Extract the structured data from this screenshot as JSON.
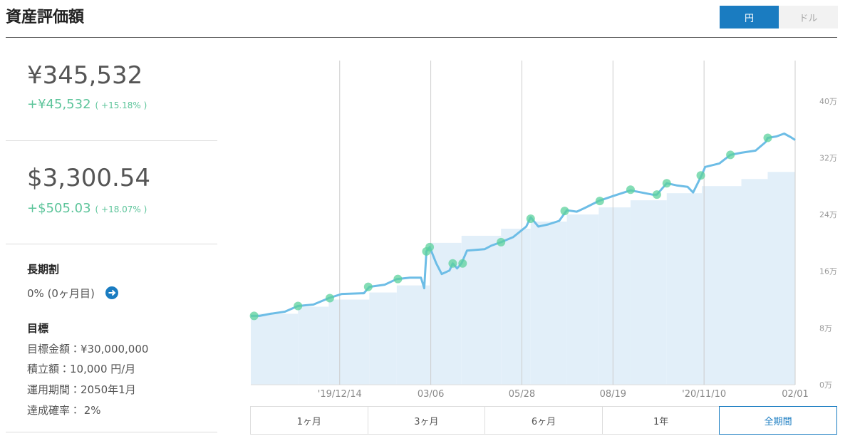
{
  "header": {
    "title": "資産評価額",
    "currency_toggle": [
      "円",
      "ドル"
    ],
    "active_currency": 0
  },
  "summary": {
    "jpy": {
      "value": "¥345,532",
      "change": "+¥45,532",
      "change_pct": "( +15.18% )"
    },
    "usd": {
      "value": "$3,300.54",
      "change": "+$505.03",
      "change_pct": "( +18.07% )"
    }
  },
  "long_term": {
    "heading": "長期割",
    "text": "0% (0ヶ月目)"
  },
  "goal": {
    "heading": "目標",
    "lines": [
      "目標金額：¥30,000,000",
      "積立額：10,000 円/月",
      "運用期間：2050年1月",
      "達成確率： 2%"
    ]
  },
  "chart_data": {
    "type": "line",
    "xlim": [
      0,
      496
    ],
    "xticks": [
      {
        "value": 81,
        "label": "'19/12/14"
      },
      {
        "value": 164,
        "label": "03/06"
      },
      {
        "value": 247,
        "label": "05/28"
      },
      {
        "value": 330,
        "label": "08/19"
      },
      {
        "value": 413,
        "label": "'20/11/10"
      },
      {
        "value": 496,
        "label": "02/01"
      }
    ],
    "ylim": [
      0,
      457000
    ],
    "yticks": [
      {
        "value": 0,
        "label": "0万"
      },
      {
        "value": 80000,
        "label": "8万"
      },
      {
        "value": 160000,
        "label": "16万"
      },
      {
        "value": 240000,
        "label": "24万"
      },
      {
        "value": 320000,
        "label": "32万"
      },
      {
        "value": 400000,
        "label": "40万"
      }
    ],
    "grid": "x",
    "series": [
      {
        "type": "step-area",
        "color": "#e2eff9",
        "x": [
          0,
          43,
          71,
          108,
          133,
          163,
          192,
          228,
          255,
          288,
          317,
          346,
          379,
          411,
          447,
          471
        ],
        "values": [
          100000,
          110000,
          120000,
          130000,
          140000,
          200000,
          210000,
          220000,
          230000,
          240000,
          250000,
          260000,
          270000,
          280000,
          290000,
          300000
        ]
      },
      {
        "type": "line",
        "color": "#6dbde6",
        "x": [
          0,
          8,
          18,
          31,
          43,
          57,
          71,
          83,
          103,
          108,
          122,
          133,
          145,
          155,
          158,
          160,
          163,
          169,
          174,
          181,
          184,
          188,
          192,
          197,
          213,
          219,
          228,
          239,
          251,
          255,
          262,
          271,
          281,
          288,
          297,
          304,
          317,
          330,
          346,
          356,
          366,
          370,
          379,
          388,
          398,
          403,
          411,
          414,
          427,
          437,
          447,
          460,
          469,
          471,
          479,
          486,
          492,
          496
        ],
        "values": [
          97000,
          97000,
          100000,
          103000,
          111000,
          113000,
          122000,
          128000,
          129000,
          138000,
          141000,
          149000,
          151000,
          151000,
          136000,
          188000,
          194000,
          171000,
          156000,
          161000,
          171000,
          164000,
          171000,
          189000,
          191000,
          196000,
          201000,
          208000,
          223000,
          236000,
          223000,
          226000,
          231000,
          246000,
          244000,
          249000,
          259000,
          266000,
          274000,
          271000,
          268000,
          268000,
          284000,
          281000,
          279000,
          271000,
          296000,
          307000,
          312000,
          324000,
          327000,
          330000,
          342000,
          348000,
          350000,
          354000,
          349000,
          345000
        ]
      },
      {
        "type": "scatter",
        "color": "#5cd19c",
        "x": [
          3,
          43,
          72,
          107,
          134,
          160,
          163,
          184,
          193,
          228,
          255,
          286,
          318,
          346,
          370,
          379,
          410,
          437,
          471
        ],
        "values": [
          97000,
          111000,
          122000,
          138000,
          149000,
          188000,
          194000,
          171000,
          171000,
          201000,
          234000,
          245000,
          259000,
          275000,
          268000,
          284000,
          295000,
          324000,
          348000
        ]
      }
    ]
  },
  "period_buttons": {
    "labels": [
      "1ヶ月",
      "3ヶ月",
      "6ヶ月",
      "1年",
      "全期間"
    ],
    "active": 4
  }
}
